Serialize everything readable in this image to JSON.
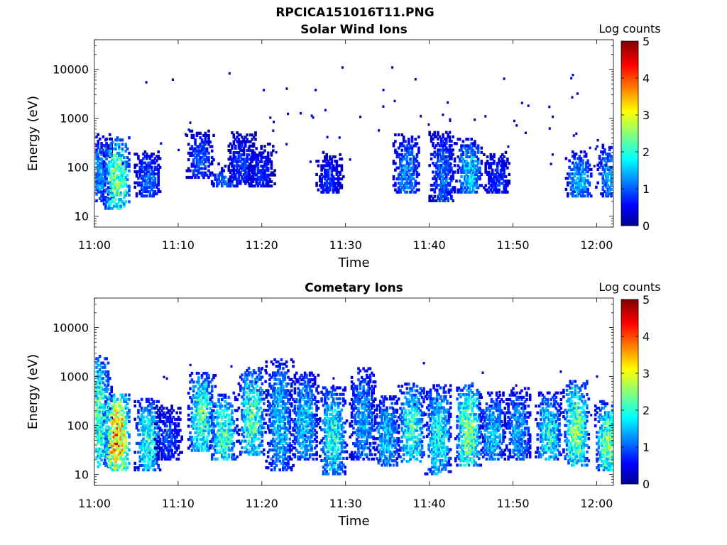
{
  "figure": {
    "title": "RPCICA151016T11.PNG",
    "colorbar_label": "Log counts"
  },
  "chart_data": [
    {
      "type": "heatmap",
      "title": "Solar Wind Ions",
      "xlabel": "Time",
      "ylabel": "Energy (eV)",
      "x_range": [
        "11:00",
        "12:02"
      ],
      "x_ticks": [
        "11:00",
        "11:10",
        "11:20",
        "11:30",
        "11:40",
        "11:50",
        "12:00"
      ],
      "y_scale": "log",
      "ylim": [
        6,
        40000
      ],
      "y_ticks": [
        10,
        100,
        1000,
        10000
      ],
      "y_tick_labels": [
        "10",
        "100",
        "1000",
        "10000"
      ],
      "colorbar": {
        "label": "Log counts",
        "range": [
          0,
          5
        ],
        "ticks": [
          "0",
          "1",
          "2",
          "3",
          "4",
          "5"
        ],
        "colormap": "jet"
      },
      "bursts": [
        {
          "t": 0.3,
          "e_lo": 20,
          "e_hi": 450,
          "peak": 1.3
        },
        {
          "t": 2.6,
          "e_lo": 14,
          "e_hi": 400,
          "peak": 2.5
        },
        {
          "t": 6.3,
          "e_lo": 25,
          "e_hi": 220,
          "peak": 1.1
        },
        {
          "t": 12.5,
          "e_lo": 60,
          "e_hi": 550,
          "peak": 1.0
        },
        {
          "t": 15.5,
          "e_lo": 40,
          "e_hi": 120,
          "peak": 1.2
        },
        {
          "t": 17.5,
          "e_lo": 45,
          "e_hi": 500,
          "peak": 0.9
        },
        {
          "t": 19.8,
          "e_lo": 40,
          "e_hi": 300,
          "peak": 0.8
        },
        {
          "t": 28.0,
          "e_lo": 30,
          "e_hi": 200,
          "peak": 0.8
        },
        {
          "t": 37.2,
          "e_lo": 30,
          "e_hi": 450,
          "peak": 1.3
        },
        {
          "t": 41.5,
          "e_lo": 20,
          "e_hi": 550,
          "peak": 1.1
        },
        {
          "t": 44.7,
          "e_lo": 30,
          "e_hi": 380,
          "peak": 1.6
        },
        {
          "t": 48.0,
          "e_lo": 30,
          "e_hi": 200,
          "peak": 0.9
        },
        {
          "t": 57.8,
          "e_lo": 25,
          "e_hi": 220,
          "peak": 1.5
        },
        {
          "t": 61.4,
          "e_lo": 25,
          "e_hi": 300,
          "peak": 1.3
        }
      ]
    },
    {
      "type": "heatmap",
      "title": "Cometary Ions",
      "xlabel": "Time",
      "ylabel": "Energy (eV)",
      "x_range": [
        "11:00",
        "12:02"
      ],
      "x_ticks": [
        "11:00",
        "11:10",
        "11:20",
        "11:30",
        "11:40",
        "11:50",
        "12:00"
      ],
      "y_scale": "log",
      "ylim": [
        6,
        40000
      ],
      "y_ticks": [
        10,
        100,
        1000,
        10000
      ],
      "y_tick_labels": [
        "10",
        "100",
        "1000",
        "10000"
      ],
      "colorbar": {
        "label": "Log counts",
        "range": [
          0,
          5
        ],
        "ticks": [
          "0",
          "1",
          "2",
          "3",
          "4",
          "5"
        ],
        "colormap": "jet"
      },
      "bursts": [
        {
          "t": 0.3,
          "e_lo": 14,
          "e_hi": 2500,
          "peak": 2.2
        },
        {
          "t": 2.6,
          "e_lo": 12,
          "e_hi": 450,
          "peak": 3.6
        },
        {
          "t": 6.3,
          "e_lo": 12,
          "e_hi": 350,
          "peak": 2.0
        },
        {
          "t": 8.7,
          "e_lo": 20,
          "e_hi": 250,
          "peak": 1.0
        },
        {
          "t": 12.7,
          "e_lo": 30,
          "e_hi": 1200,
          "peak": 2.2
        },
        {
          "t": 15.3,
          "e_lo": 20,
          "e_hi": 450,
          "peak": 2.2
        },
        {
          "t": 18.7,
          "e_lo": 25,
          "e_hi": 1500,
          "peak": 2.2
        },
        {
          "t": 22.0,
          "e_lo": 12,
          "e_hi": 2200,
          "peak": 1.6
        },
        {
          "t": 25.0,
          "e_lo": 20,
          "e_hi": 1200,
          "peak": 1.6
        },
        {
          "t": 28.4,
          "e_lo": 10,
          "e_hi": 600,
          "peak": 2.0
        },
        {
          "t": 32.0,
          "e_lo": 20,
          "e_hi": 1500,
          "peak": 1.4
        },
        {
          "t": 34.8,
          "e_lo": 15,
          "e_hi": 400,
          "peak": 1.6
        },
        {
          "t": 37.8,
          "e_lo": 18,
          "e_hi": 700,
          "peak": 2.1
        },
        {
          "t": 41.0,
          "e_lo": 10,
          "e_hi": 650,
          "peak": 1.9
        },
        {
          "t": 44.6,
          "e_lo": 15,
          "e_hi": 700,
          "peak": 2.5
        },
        {
          "t": 47.5,
          "e_lo": 20,
          "e_hi": 450,
          "peak": 1.6
        },
        {
          "t": 50.5,
          "e_lo": 20,
          "e_hi": 600,
          "peak": 1.4
        },
        {
          "t": 54.2,
          "e_lo": 20,
          "e_hi": 450,
          "peak": 1.9
        },
        {
          "t": 57.5,
          "e_lo": 15,
          "e_hi": 800,
          "peak": 2.4
        },
        {
          "t": 61.3,
          "e_lo": 12,
          "e_hi": 300,
          "peak": 2.4
        }
      ]
    }
  ]
}
